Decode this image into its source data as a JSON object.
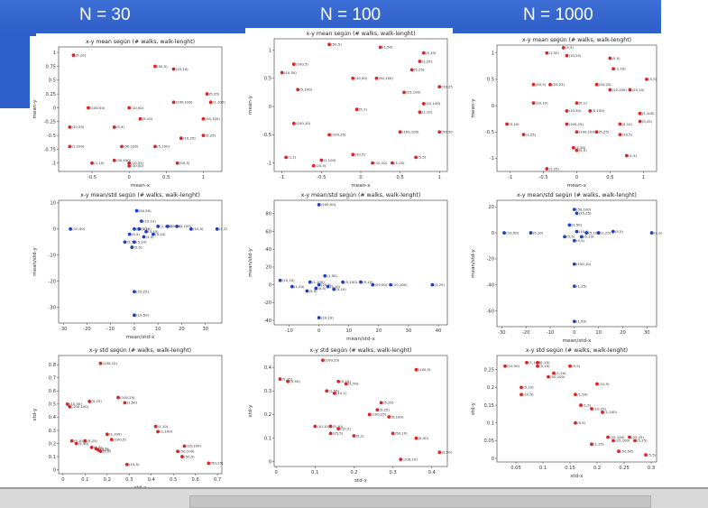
{
  "header": {
    "n30": "N = 30",
    "n100": "N = 100",
    "n1000": "N = 1000"
  },
  "colors": {
    "banner": "#2f5fc8",
    "red": "#d62728",
    "blue": "#1f3fbf"
  },
  "chart_data": [
    {
      "id": "c11",
      "type": "scatter",
      "title": "x-y mean según (# walks, walk-lenght)",
      "xlabel": "mean-x",
      "ylabel": "mean-y",
      "color": "red",
      "xlim": [
        -0.95,
        1.25
      ],
      "ylim": [
        -1.15,
        1.1
      ],
      "xticks": [
        -0.5,
        0.0,
        0.5,
        1.0
      ],
      "yticks": [
        -1.0,
        -0.75,
        -0.5,
        -0.25,
        0.0,
        0.25,
        0.5,
        0.75,
        1.0
      ],
      "points": [
        [
          -0.75,
          0.95,
          "(5,10)"
        ],
        [
          0.35,
          0.75,
          "(50,5)"
        ],
        [
          0.6,
          0.7,
          "(10,10)"
        ],
        [
          -0.55,
          0.0,
          "(100,50)"
        ],
        [
          0.0,
          0.0,
          "(10,50)"
        ],
        [
          0.6,
          0.1,
          "(100,100)"
        ],
        [
          1.05,
          0.25,
          "(5,25)"
        ],
        [
          1.1,
          0.1,
          "(1,100)"
        ],
        [
          0.15,
          -0.2,
          "(5,10)"
        ],
        [
          -0.2,
          -0.35,
          "(5,5)"
        ],
        [
          -0.8,
          -0.35,
          "(10,25)"
        ],
        [
          1.0,
          -0.2,
          "(10,100)"
        ],
        [
          0.7,
          -0.55,
          "(10,25)"
        ],
        [
          1.0,
          -0.5,
          "(5,25)"
        ],
        [
          -0.8,
          -0.7,
          "(1,100)"
        ],
        [
          -0.1,
          -0.7,
          "(50,100)"
        ],
        [
          0.35,
          -0.7,
          "(5,100)"
        ],
        [
          -0.5,
          -1.0,
          "(1,10)"
        ],
        [
          -0.2,
          -0.95,
          "(50,100)"
        ],
        [
          0.0,
          -1.0,
          "(10,25)"
        ],
        [
          0.0,
          -1.05,
          "(10,50)"
        ],
        [
          0.65,
          -1.0,
          "(50,5)"
        ]
      ]
    },
    {
      "id": "c12",
      "type": "scatter",
      "title": "x-y mean según (# walks, walk-lenght)",
      "xlabel": "mean-x",
      "ylabel": "mean-y",
      "color": "red",
      "xlim": [
        -1.1,
        1.1
      ],
      "ylim": [
        -1.15,
        1.2
      ],
      "xticks": [
        -1.0,
        -0.5,
        0.0,
        0.5,
        1.0
      ],
      "yticks": [
        -1.0,
        -0.5,
        0.0,
        0.5,
        1.0
      ],
      "points": [
        [
          -0.4,
          1.1,
          "(50,5)"
        ],
        [
          0.25,
          1.05,
          "(1,50)"
        ],
        [
          0.8,
          0.95,
          "(5,10)"
        ],
        [
          -0.85,
          0.75,
          "(100,5)"
        ],
        [
          0.75,
          0.8,
          "(1,25)"
        ],
        [
          -1.0,
          0.6,
          "(10,50)"
        ],
        [
          0.65,
          0.65,
          "(5,25)"
        ],
        [
          -0.1,
          0.5,
          "(10,50)"
        ],
        [
          0.2,
          0.5,
          "(50,100)"
        ],
        [
          1.0,
          0.35,
          "(10,25)"
        ],
        [
          -0.8,
          0.3,
          "(5,100)"
        ],
        [
          0.55,
          0.25,
          "(25,100)"
        ],
        [
          -0.05,
          -0.05,
          "(5,1)"
        ],
        [
          0.8,
          0.05,
          "(10,100)"
        ],
        [
          0.75,
          -0.1,
          "(1,10)"
        ],
        [
          -0.85,
          -0.3,
          "(100,10)"
        ],
        [
          0.5,
          -0.45,
          "(100,100)"
        ],
        [
          -0.4,
          -0.5,
          "(100,25)"
        ],
        [
          1.0,
          -0.45,
          "(50,50)"
        ],
        [
          -0.95,
          -0.9,
          "(1,1)"
        ],
        [
          -0.5,
          -0.95,
          "(1,100)"
        ],
        [
          -0.1,
          -0.85,
          "(10,5)"
        ],
        [
          0.15,
          -1.0,
          "(10,10)"
        ],
        [
          0.4,
          -1.0,
          "(1,25)"
        ],
        [
          0.7,
          -0.9,
          "(5,5)"
        ],
        [
          -0.6,
          -1.05,
          "(25,5)"
        ]
      ]
    },
    {
      "id": "c13",
      "type": "scatter",
      "title": "x-y mean según (# walks, walk-lenght)",
      "xlabel": "mean-x",
      "ylabel": "mean-y",
      "color": "red",
      "xlim": [
        -1.2,
        1.2
      ],
      "ylim": [
        -1.25,
        1.15
      ],
      "xticks": [
        -1.0,
        -0.5,
        0.0,
        0.5,
        1.0
      ],
      "yticks": [
        -1.0,
        -0.5,
        0.0,
        0.5,
        1.0
      ],
      "points": [
        [
          -0.45,
          1.0,
          "(1,50)"
        ],
        [
          -0.2,
          1.1,
          "(5,5)"
        ],
        [
          -0.15,
          0.95,
          "(10,25)"
        ],
        [
          0.5,
          0.9,
          "(5,5)"
        ],
        [
          0.55,
          0.7,
          "(1,10)"
        ],
        [
          1.05,
          0.5,
          "(5,5)"
        ],
        [
          -0.65,
          0.4,
          "(50,5)"
        ],
        [
          -0.4,
          0.4,
          "(25,25)"
        ],
        [
          0.3,
          0.4,
          "(50,25)"
        ],
        [
          0.5,
          0.3,
          "(10,100)"
        ],
        [
          0.8,
          0.3,
          "(25,10)"
        ],
        [
          -0.65,
          0.05,
          "(10,10)"
        ],
        [
          0.0,
          0.05,
          "(5,1)"
        ],
        [
          -0.15,
          -0.1,
          "(10,50)"
        ],
        [
          0.2,
          -0.1,
          "(5,100)"
        ],
        [
          0.95,
          -0.15,
          "(1,100)"
        ],
        [
          -1.05,
          -0.35,
          "(5,10)"
        ],
        [
          -0.15,
          -0.35,
          "(100,25)"
        ],
        [
          0.65,
          -0.35,
          "(5,10)"
        ],
        [
          0.95,
          -0.3,
          "(5,25)"
        ],
        [
          -0.8,
          -0.55,
          "(1,25)"
        ],
        [
          0.0,
          -0.5,
          "(100,100)"
        ],
        [
          0.3,
          -0.5,
          "(5,25)"
        ],
        [
          0.65,
          -0.55,
          "(10,5)"
        ],
        [
          -0.05,
          -0.8,
          "(5,50)"
        ],
        [
          0.0,
          -0.85,
          "(5,5)"
        ],
        [
          0.75,
          -0.95,
          "(1,5)"
        ],
        [
          -0.45,
          -1.2,
          "(1,25)"
        ]
      ]
    },
    {
      "id": "c21",
      "type": "scatter",
      "title": "x-y mean/std según (# walks, walk-lenght)",
      "xlabel": "mean/std-x",
      "ylabel": "mean/std-y",
      "color": "blue",
      "xlim": [
        -32,
        37
      ],
      "ylim": [
        -36,
        11
      ],
      "xticks": [
        -30,
        -20,
        -10,
        0,
        10,
        20,
        30
      ],
      "yticks": [
        -30,
        -20,
        -10,
        0,
        10
      ],
      "points": [
        [
          -27,
          0,
          "(10,50)"
        ],
        [
          1,
          7,
          "(50,50)"
        ],
        [
          3,
          3,
          "(10,10)"
        ],
        [
          10,
          1,
          "(1,100)"
        ],
        [
          14,
          1,
          "(25,10)"
        ],
        [
          18,
          1,
          "(1,100)"
        ],
        [
          24,
          0,
          "(10,5)"
        ],
        [
          35,
          0,
          "(1,25)"
        ],
        [
          0,
          0,
          "(50,25)"
        ],
        [
          2,
          0,
          "(5,10)"
        ],
        [
          5,
          -1,
          "(5,10)"
        ],
        [
          8,
          -2,
          "(5,10)"
        ],
        [
          -2,
          -2,
          "(5,5)"
        ],
        [
          4,
          -3,
          "(1,5)"
        ],
        [
          -4,
          -5,
          "(5,5)"
        ],
        [
          0,
          -5,
          "(5,10)"
        ],
        [
          -1,
          -7,
          "(5,5)"
        ],
        [
          0,
          -24,
          "(25,25)"
        ],
        [
          0,
          -33,
          "(10,50)"
        ]
      ]
    },
    {
      "id": "c22",
      "type": "scatter",
      "title": "x-y mean/std según (# walks, walk-lenght)",
      "xlabel": "mean/std-x",
      "ylabel": "mean/std-y",
      "color": "blue",
      "xlim": [
        -15,
        43
      ],
      "ylim": [
        -45,
        95
      ],
      "xticks": [
        -10,
        0,
        10,
        20,
        30,
        40
      ],
      "yticks": [
        -40,
        -20,
        0,
        20,
        40,
        60,
        80
      ],
      "points": [
        [
          0,
          90,
          "(100,50)"
        ],
        [
          -13,
          5,
          "(10,10)"
        ],
        [
          -9,
          -2,
          "(1,50)"
        ],
        [
          -3,
          3,
          "(1,100)"
        ],
        [
          2,
          10,
          "(1,50)"
        ],
        [
          8,
          3,
          "(5,100)"
        ],
        [
          14,
          3,
          "(5,10)"
        ],
        [
          18,
          0,
          "(25,50)"
        ],
        [
          24,
          0,
          "(10,100)"
        ],
        [
          38,
          0,
          "(1,25)"
        ],
        [
          0,
          0,
          "(25,5)"
        ],
        [
          3,
          -2,
          "(5,10)"
        ],
        [
          5,
          -5,
          "(5,10)"
        ],
        [
          -1,
          -4,
          "(5,5)"
        ],
        [
          -4,
          -7,
          "(5,5)"
        ],
        [
          0,
          -37,
          "(10,10)"
        ]
      ]
    },
    {
      "id": "c23",
      "type": "scatter",
      "title": "x-y mean/std según (# walks, walk-lenght)",
      "xlabel": "mean/std-x",
      "ylabel": "mean/std-y",
      "color": "blue",
      "xlim": [
        -32,
        34
      ],
      "ylim": [
        -72,
        25
      ],
      "xticks": [
        -30,
        -20,
        -10,
        0,
        10,
        20,
        30
      ],
      "yticks": [
        -60,
        -40,
        -20,
        0,
        20
      ],
      "points": [
        [
          0,
          18,
          "(50,100)"
        ],
        [
          1,
          15,
          "(25,25)"
        ],
        [
          -2,
          6,
          "(1,50)"
        ],
        [
          -29,
          0,
          "(10,50)"
        ],
        [
          -18,
          0,
          "(5,10)"
        ],
        [
          1,
          1,
          "(10,5)"
        ],
        [
          5,
          0,
          "(5,10)"
        ],
        [
          10,
          0,
          "(1,25)"
        ],
        [
          16,
          1,
          "(5,5)"
        ],
        [
          32,
          0,
          "(1,100)"
        ],
        [
          -4,
          -3,
          "(5,5)"
        ],
        [
          3,
          -3,
          "(5,10)"
        ],
        [
          0,
          -6,
          "(5,5)"
        ],
        [
          0,
          -24,
          "(100,10)"
        ],
        [
          0,
          -41,
          "(1,25)"
        ],
        [
          0,
          -68,
          "(1,50)"
        ]
      ]
    },
    {
      "id": "c31",
      "type": "scatter",
      "title": "x-y std según (# walks, walk-lenght)",
      "xlabel": "std-x",
      "ylabel": "std-y",
      "color": "red",
      "xlim": [
        -0.02,
        0.72
      ],
      "ylim": [
        -0.03,
        0.87
      ],
      "xticks": [
        0.0,
        0.1,
        0.2,
        0.3,
        0.4,
        0.5,
        0.6,
        0.7
      ],
      "yticks": [
        0.0,
        0.1,
        0.2,
        0.3,
        0.4,
        0.5,
        0.6,
        0.7,
        0.8
      ],
      "points": [
        [
          0.17,
          0.81,
          "(100,10)"
        ],
        [
          0.25,
          0.55,
          "(100,25)"
        ],
        [
          0.28,
          0.51,
          "(1,50)"
        ],
        [
          0.02,
          0.5,
          "(10,50)"
        ],
        [
          0.03,
          0.48,
          "(100,100)"
        ],
        [
          0.12,
          0.52,
          "(5,25)"
        ],
        [
          0.42,
          0.33,
          "(1,10)"
        ],
        [
          0.43,
          0.29,
          "(1,100)"
        ],
        [
          0.2,
          0.27,
          "(1,100)"
        ],
        [
          0.22,
          0.23,
          "(100,5)"
        ],
        [
          0.04,
          0.22,
          "(5,10)"
        ],
        [
          0.1,
          0.22,
          "(5,25)"
        ],
        [
          0.06,
          0.2,
          "(5,50)"
        ],
        [
          0.13,
          0.17,
          "(5,5)"
        ],
        [
          0.15,
          0.16,
          "(10,5)"
        ],
        [
          0.16,
          0.15,
          "(5,10)"
        ],
        [
          0.17,
          0.14,
          "(5,1)"
        ],
        [
          0.55,
          0.18,
          "(10,100)"
        ],
        [
          0.52,
          0.14,
          "(50,100)"
        ],
        [
          0.54,
          0.1,
          "(50,5)"
        ],
        [
          0.29,
          0.04,
          "(10,5)"
        ],
        [
          0.66,
          0.05,
          "(50,25)"
        ]
      ]
    },
    {
      "id": "c32",
      "type": "scatter",
      "title": "x-y std según (# walks, walk-lenght)",
      "xlabel": "std-x",
      "ylabel": "std-y",
      "color": "red",
      "xlim": [
        -0.005,
        0.44
      ],
      "ylim": [
        -0.02,
        0.45
      ],
      "xticks": [
        0.0,
        0.1,
        0.2,
        0.3,
        0.4
      ],
      "yticks": [
        0.0,
        0.1,
        0.2,
        0.3,
        0.4
      ],
      "points": [
        [
          0.12,
          0.43,
          "(100,25)"
        ],
        [
          0.36,
          0.39,
          "(100,5)"
        ],
        [
          0.01,
          0.35,
          "(5,25)"
        ],
        [
          0.03,
          0.34,
          "(5,50)"
        ],
        [
          0.16,
          0.34,
          "(5,10)"
        ],
        [
          0.18,
          0.33,
          "(1,50)"
        ],
        [
          0.13,
          0.3,
          "(1,50)"
        ],
        [
          0.15,
          0.29,
          "(10,1)"
        ],
        [
          0.27,
          0.25,
          "(5,25)"
        ],
        [
          0.26,
          0.22,
          "(5,25)"
        ],
        [
          0.24,
          0.2,
          "(100,25)"
        ],
        [
          0.29,
          0.19,
          "(5,100)"
        ],
        [
          0.1,
          0.15,
          "(10,10)"
        ],
        [
          0.14,
          0.15,
          "(5,10)"
        ],
        [
          0.16,
          0.14,
          "(10,5)"
        ],
        [
          0.14,
          0.12,
          "(25,5)"
        ],
        [
          0.3,
          0.12,
          "(50,10)"
        ],
        [
          0.2,
          0.11,
          "(5,1)"
        ],
        [
          0.36,
          0.1,
          "(5,50)"
        ],
        [
          0.32,
          0.01,
          "(100,10)"
        ],
        [
          0.42,
          0.04,
          "(1,50)"
        ]
      ]
    },
    {
      "id": "c33",
      "type": "scatter",
      "title": "x-y std según (# walks, walk-lenght)",
      "xlabel": "std-x",
      "ylabel": "std-y",
      "color": "red",
      "xlim": [
        0.015,
        0.31
      ],
      "ylim": [
        -0.01,
        0.29
      ],
      "xticks": [
        0.05,
        0.1,
        0.15,
        0.2,
        0.25,
        0.3
      ],
      "yticks": [
        0.0,
        0.05,
        0.1,
        0.15,
        0.2,
        0.25
      ],
      "points": [
        [
          0.07,
          0.27,
          "(1,100)"
        ],
        [
          0.09,
          0.27,
          "(1,10)"
        ],
        [
          0.03,
          0.26,
          "(10,50)"
        ],
        [
          0.09,
          0.26,
          "(5,10)"
        ],
        [
          0.15,
          0.26,
          "(5,5)"
        ],
        [
          0.12,
          0.24,
          "(1,50)"
        ],
        [
          0.11,
          0.23,
          "(50,100)"
        ],
        [
          0.2,
          0.21,
          "(10,5)"
        ],
        [
          0.06,
          0.2,
          "(5,10)"
        ],
        [
          0.06,
          0.18,
          "(10,5)"
        ],
        [
          0.16,
          0.18,
          "(1,50)"
        ],
        [
          0.17,
          0.15,
          "(1,5)"
        ],
        [
          0.19,
          0.14,
          "(10,25)"
        ],
        [
          0.21,
          0.13,
          "(1,100)"
        ],
        [
          0.16,
          0.1,
          "(5,5)"
        ],
        [
          0.22,
          0.06,
          "(25,100)"
        ],
        [
          0.23,
          0.05,
          "(25,100)"
        ],
        [
          0.26,
          0.06,
          "(25,25)"
        ],
        [
          0.27,
          0.05,
          "(5,25)"
        ],
        [
          0.19,
          0.04,
          "(1,25)"
        ],
        [
          0.24,
          0.02,
          "(50,50)"
        ],
        [
          0.29,
          0.01,
          "(5,5)"
        ]
      ]
    }
  ]
}
